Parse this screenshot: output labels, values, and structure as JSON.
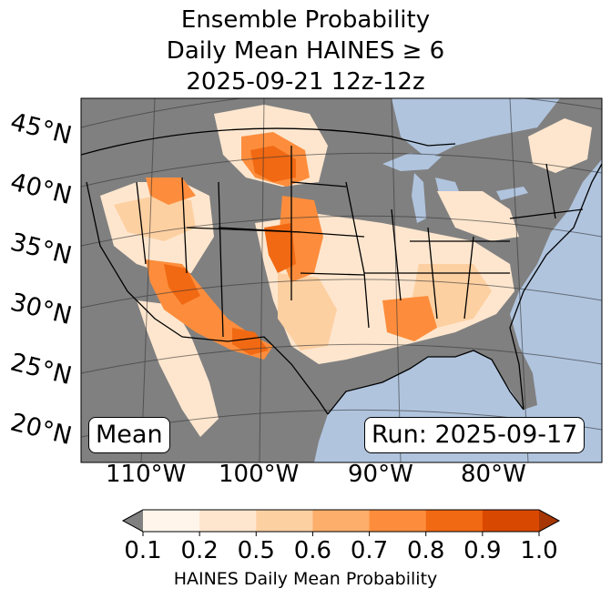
{
  "title": {
    "line1": "Ensemble Probability",
    "line2": "Daily Mean HAINES ≥ 6",
    "line3": "2025-09-21 12z-12z"
  },
  "map": {
    "latitude_labels": [
      "45°N",
      "40°N",
      "35°N",
      "30°N",
      "25°N",
      "20°N"
    ],
    "longitude_labels": [
      "110°W",
      "100°W",
      "90°W",
      "80°W"
    ],
    "ocean_color": "#b0c4de",
    "land_no_data_color": "#808080",
    "stat_label": "Mean",
    "run_label": "Run: 2025-09-17"
  },
  "colorbar": {
    "ticks": [
      "0.1",
      "0.2",
      "0.5",
      "0.6",
      "0.7",
      "0.8",
      "0.9",
      "1.0"
    ],
    "colors": [
      "#fff5eb",
      "#fee6ce",
      "#fdd0a2",
      "#fdae6b",
      "#fd8d3c",
      "#f16913",
      "#d94801",
      "#a63603"
    ],
    "under_color": "#808080",
    "label": "HAINES Daily Mean Probability"
  }
}
